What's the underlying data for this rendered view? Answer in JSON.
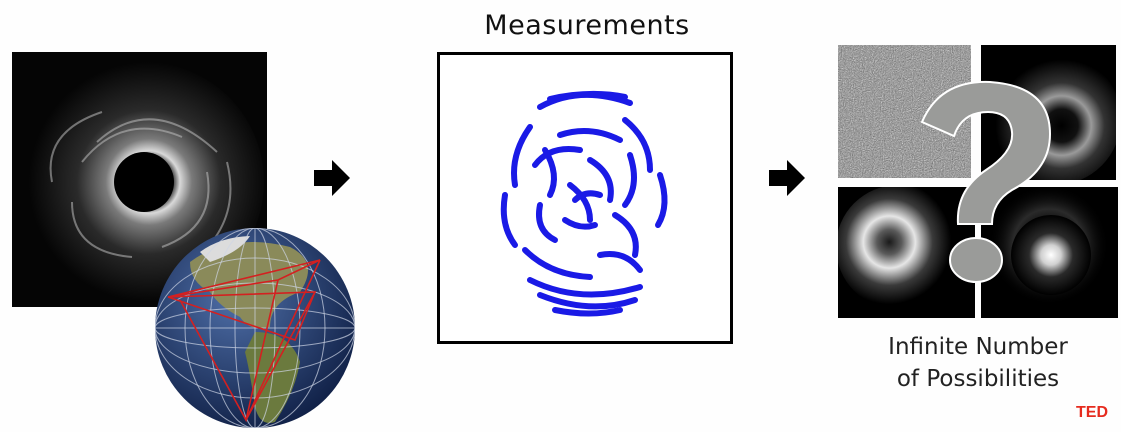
{
  "measurements": {
    "title": "Measurements"
  },
  "possibilities": {
    "line1": "Infinite Number",
    "line2": "of Possibilities"
  },
  "logo": {
    "text": "TED"
  },
  "icons": {
    "arrow": "right-arrow-icon",
    "question": "question-mark-icon"
  },
  "colors": {
    "measurement_arcs": "#1a1ae6",
    "question_mark": "#9a9b99",
    "globe_lines": "#d42020",
    "ted": "#e62b1e"
  }
}
